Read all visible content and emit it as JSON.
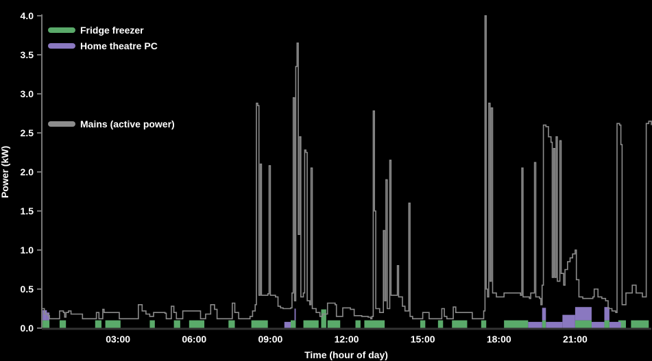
{
  "chart_data": {
    "type": "line",
    "title": "",
    "xlabel": "Time (hour of day)",
    "ylabel": "Power (kW)",
    "xlim": [
      0,
      24
    ],
    "ylim": [
      0,
      4.0
    ],
    "grid": false,
    "legend_position": "upper-left",
    "x_ticks": [
      {
        "value": 3,
        "label": "03:00"
      },
      {
        "value": 6,
        "label": "06:00"
      },
      {
        "value": 9,
        "label": "09:00"
      },
      {
        "value": 12,
        "label": "12:00"
      },
      {
        "value": 15,
        "label": "15:00"
      },
      {
        "value": 18,
        "label": "18:00"
      },
      {
        "value": 21,
        "label": "21:00"
      }
    ],
    "y_ticks": [
      {
        "value": 0.0,
        "label": "0.0"
      },
      {
        "value": 0.5,
        "label": "0.5"
      },
      {
        "value": 1.0,
        "label": "1.0"
      },
      {
        "value": 1.5,
        "label": "1.5"
      },
      {
        "value": 2.0,
        "label": "2.0"
      },
      {
        "value": 2.5,
        "label": "2.5"
      },
      {
        "value": 3.0,
        "label": "3.0"
      },
      {
        "value": 3.5,
        "label": "3.5"
      },
      {
        "value": 4.0,
        "label": "4.0"
      }
    ],
    "legend": [
      {
        "name": "Fridge freezer",
        "color": "#5aaa6a"
      },
      {
        "name": "Home theatre PC",
        "color": "#8a78c0"
      },
      {
        "name": "Mains (active power)",
        "color": "#8c8c8c"
      }
    ],
    "series": [
      {
        "name": "Mains (active power)",
        "type": "step-line",
        "color": "#8c8c8c",
        "points": [
          [
            0.0,
            0.25
          ],
          [
            0.05,
            0.25
          ],
          [
            0.1,
            0.18
          ],
          [
            0.2,
            0.18
          ],
          [
            0.25,
            0.16
          ],
          [
            0.3,
            0.12
          ],
          [
            0.65,
            0.12
          ],
          [
            0.7,
            0.22
          ],
          [
            0.85,
            0.2
          ],
          [
            0.9,
            0.14
          ],
          [
            0.95,
            0.2
          ],
          [
            1.05,
            0.22
          ],
          [
            1.15,
            0.18
          ],
          [
            1.55,
            0.18
          ],
          [
            1.6,
            0.12
          ],
          [
            2.1,
            0.12
          ],
          [
            2.15,
            0.2
          ],
          [
            2.25,
            0.12
          ],
          [
            2.35,
            0.12
          ],
          [
            2.4,
            0.24
          ],
          [
            2.45,
            0.2
          ],
          [
            3.0,
            0.2
          ],
          [
            3.05,
            0.12
          ],
          [
            3.75,
            0.12
          ],
          [
            3.8,
            0.3
          ],
          [
            3.95,
            0.22
          ],
          [
            4.1,
            0.18
          ],
          [
            4.25,
            0.15
          ],
          [
            4.35,
            0.15
          ],
          [
            4.4,
            0.2
          ],
          [
            4.85,
            0.19
          ],
          [
            4.9,
            0.12
          ],
          [
            5.05,
            0.12
          ],
          [
            5.1,
            0.28
          ],
          [
            5.2,
            0.2
          ],
          [
            5.3,
            0.12
          ],
          [
            5.5,
            0.12
          ],
          [
            5.55,
            0.22
          ],
          [
            6.2,
            0.22
          ],
          [
            6.25,
            0.12
          ],
          [
            6.35,
            0.12
          ],
          [
            6.45,
            0.18
          ],
          [
            6.55,
            0.18
          ],
          [
            6.65,
            0.3
          ],
          [
            6.8,
            0.24
          ],
          [
            6.9,
            0.12
          ],
          [
            7.4,
            0.12
          ],
          [
            7.5,
            0.32
          ],
          [
            7.6,
            0.2
          ],
          [
            7.75,
            0.12
          ],
          [
            8.15,
            0.12
          ],
          [
            8.2,
            0.15
          ],
          [
            8.3,
            0.22
          ],
          [
            8.4,
            0.3
          ],
          [
            8.45,
            2.88
          ],
          [
            8.5,
            2.85
          ],
          [
            8.55,
            0.42
          ],
          [
            8.6,
            2.1
          ],
          [
            8.65,
            0.42
          ],
          [
            8.9,
            0.44
          ],
          [
            8.95,
            2.08
          ],
          [
            9.0,
            0.42
          ],
          [
            9.2,
            0.4
          ],
          [
            9.3,
            0.28
          ],
          [
            9.4,
            0.26
          ],
          [
            9.5,
            0.25
          ],
          [
            9.8,
            0.26
          ],
          [
            9.85,
            0.45
          ],
          [
            9.9,
            2.95
          ],
          [
            9.95,
            0.35
          ],
          [
            10.0,
            3.35
          ],
          [
            10.05,
            3.65
          ],
          [
            10.1,
            1.2
          ],
          [
            10.15,
            2.45
          ],
          [
            10.2,
            0.4
          ],
          [
            10.3,
            0.45
          ],
          [
            10.35,
            2.28
          ],
          [
            10.4,
            2.25
          ],
          [
            10.45,
            0.35
          ],
          [
            10.55,
            0.3
          ],
          [
            10.6,
            2.05
          ],
          [
            10.65,
            0.25
          ],
          [
            10.8,
            0.2
          ],
          [
            10.95,
            0.15
          ],
          [
            11.05,
            0.18
          ],
          [
            11.2,
            0.18
          ],
          [
            11.25,
            0.32
          ],
          [
            11.55,
            0.3
          ],
          [
            11.6,
            0.15
          ],
          [
            11.8,
            0.15
          ],
          [
            11.85,
            0.26
          ],
          [
            12.15,
            0.24
          ],
          [
            12.25,
            0.24
          ],
          [
            12.3,
            0.16
          ],
          [
            12.55,
            0.16
          ],
          [
            12.6,
            0.15
          ],
          [
            12.85,
            0.14
          ],
          [
            12.95,
            0.12
          ],
          [
            13.0,
            0.15
          ],
          [
            13.05,
            2.78
          ],
          [
            13.1,
            1.5
          ],
          [
            13.15,
            0.25
          ],
          [
            13.3,
            0.2
          ],
          [
            13.4,
            0.2
          ],
          [
            13.45,
            1.25
          ],
          [
            13.5,
            0.35
          ],
          [
            13.55,
            1.9
          ],
          [
            13.6,
            0.25
          ],
          [
            13.7,
            2.15
          ],
          [
            13.75,
            0.42
          ],
          [
            13.95,
            0.42
          ],
          [
            14.0,
            0.8
          ],
          [
            14.05,
            0.4
          ],
          [
            14.2,
            0.28
          ],
          [
            14.3,
            0.22
          ],
          [
            14.45,
            1.6
          ],
          [
            14.5,
            0.15
          ],
          [
            14.6,
            0.12
          ],
          [
            14.95,
            0.12
          ],
          [
            15.0,
            0.2
          ],
          [
            15.15,
            0.2
          ],
          [
            15.25,
            0.12
          ],
          [
            15.7,
            0.12
          ],
          [
            15.75,
            0.25
          ],
          [
            15.85,
            0.15
          ],
          [
            15.95,
            0.12
          ],
          [
            16.15,
            0.12
          ],
          [
            16.2,
            0.27
          ],
          [
            16.3,
            0.2
          ],
          [
            16.9,
            0.2
          ],
          [
            16.95,
            0.12
          ],
          [
            17.35,
            0.12
          ],
          [
            17.4,
            0.22
          ],
          [
            17.45,
            4.0
          ],
          [
            17.5,
            0.5
          ],
          [
            17.55,
            0.4
          ],
          [
            17.6,
            2.88
          ],
          [
            17.65,
            0.6
          ],
          [
            17.7,
            2.82
          ],
          [
            17.75,
            0.45
          ],
          [
            17.9,
            0.4
          ],
          [
            18.1,
            0.4
          ],
          [
            18.2,
            0.45
          ],
          [
            18.85,
            0.42
          ],
          [
            18.9,
            2.05
          ],
          [
            18.95,
            0.4
          ],
          [
            19.2,
            0.38
          ],
          [
            19.25,
            0.45
          ],
          [
            19.35,
            0.45
          ],
          [
            19.4,
            2.12
          ],
          [
            19.45,
            0.4
          ],
          [
            19.6,
            0.38
          ],
          [
            19.65,
            0.3
          ],
          [
            19.7,
            0.55
          ],
          [
            19.75,
            2.6
          ],
          [
            19.85,
            2.58
          ],
          [
            19.95,
            2.45
          ],
          [
            20.05,
            2.38
          ],
          [
            20.1,
            0.65
          ],
          [
            20.15,
            2.3
          ],
          [
            20.2,
            0.65
          ],
          [
            20.25,
            2.45
          ],
          [
            20.3,
            0.6
          ],
          [
            20.4,
            2.4
          ],
          [
            20.45,
            0.7
          ],
          [
            20.55,
            0.55
          ],
          [
            20.6,
            0.75
          ],
          [
            20.7,
            0.85
          ],
          [
            20.8,
            0.9
          ],
          [
            20.9,
            0.95
          ],
          [
            21.0,
            1.0
          ],
          [
            21.05,
            0.62
          ],
          [
            21.15,
            0.4
          ],
          [
            21.3,
            0.38
          ],
          [
            21.5,
            0.38
          ],
          [
            21.7,
            0.4
          ],
          [
            21.75,
            0.5
          ],
          [
            21.9,
            0.4
          ],
          [
            22.05,
            0.38
          ],
          [
            22.2,
            0.35
          ],
          [
            22.3,
            0.25
          ],
          [
            22.45,
            0.22
          ],
          [
            22.6,
            0.2
          ],
          [
            22.65,
            2.62
          ],
          [
            22.75,
            2.6
          ],
          [
            22.8,
            2.35
          ],
          [
            22.85,
            0.3
          ],
          [
            22.95,
            0.3
          ],
          [
            23.0,
            0.45
          ],
          [
            23.1,
            0.45
          ],
          [
            23.25,
            0.55
          ],
          [
            23.4,
            0.45
          ],
          [
            23.55,
            0.45
          ],
          [
            23.65,
            0.4
          ],
          [
            23.75,
            0.4
          ],
          [
            23.8,
            2.62
          ],
          [
            23.9,
            2.65
          ],
          [
            24.0,
            2.6
          ]
        ]
      },
      {
        "name": "Fridge freezer",
        "type": "area",
        "color": "#5aaa6a",
        "segments": [
          [
            0.03,
            0.3,
            0.1
          ],
          [
            0.7,
            0.95,
            0.1
          ],
          [
            2.1,
            2.35,
            0.1
          ],
          [
            2.5,
            3.1,
            0.1
          ],
          [
            4.25,
            4.45,
            0.1
          ],
          [
            5.2,
            5.45,
            0.1
          ],
          [
            5.8,
            6.4,
            0.1
          ],
          [
            7.35,
            7.6,
            0.1
          ],
          [
            8.25,
            8.9,
            0.1
          ],
          [
            9.8,
            10.0,
            0.1
          ],
          [
            10.3,
            10.9,
            0.1
          ],
          [
            11.0,
            11.2,
            0.24
          ],
          [
            11.25,
            11.75,
            0.1
          ],
          [
            12.35,
            12.55,
            0.1
          ],
          [
            12.7,
            13.5,
            0.1
          ],
          [
            14.9,
            15.1,
            0.1
          ],
          [
            15.6,
            15.8,
            0.1
          ],
          [
            16.15,
            16.75,
            0.1
          ],
          [
            17.3,
            17.5,
            0.1
          ],
          [
            18.2,
            19.15,
            0.1
          ],
          [
            19.7,
            19.85,
            0.1
          ],
          [
            21.0,
            21.65,
            0.1
          ],
          [
            22.15,
            22.35,
            0.1
          ],
          [
            22.7,
            23.0,
            0.1
          ],
          [
            23.2,
            23.9,
            0.1
          ]
        ]
      },
      {
        "name": "Home theatre PC",
        "type": "stacked-area",
        "color": "#8a78c0",
        "segments": [
          [
            0.03,
            0.2,
            0.13
          ],
          [
            0.2,
            0.3,
            0.1
          ],
          [
            9.55,
            9.8,
            0.08
          ],
          [
            9.95,
            10.0,
            0.15
          ],
          [
            19.15,
            19.7,
            0.08
          ],
          [
            19.7,
            19.85,
            0.16
          ],
          [
            19.85,
            20.5,
            0.08
          ],
          [
            20.5,
            21.0,
            0.17
          ],
          [
            21.0,
            21.65,
            0.17
          ],
          [
            21.65,
            22.15,
            0.08
          ],
          [
            22.15,
            22.35,
            0.17
          ],
          [
            22.35,
            22.8,
            0.08
          ]
        ]
      }
    ]
  }
}
